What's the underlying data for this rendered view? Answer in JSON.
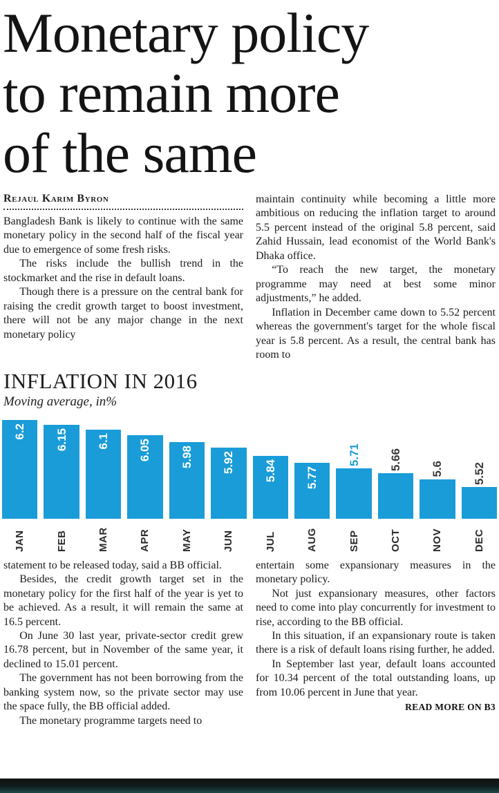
{
  "article": {
    "headline": "Monetary policy to remain more of the same",
    "headline_lines": [
      "Monetary policy",
      "to remain more",
      "of the same"
    ],
    "byline": "Rejaul Karim Byron",
    "columns_top": [
      [
        "Bangladesh Bank is likely to continue with the same monetary policy in the second half of the fiscal year due to emergence of some fresh risks.",
        "The risks include the bullish trend in the stockmarket and the rise in default loans.",
        "Though there is a pressure on the central bank for raising the credit growth target to boost investment, there will not be any major change in the next monetary policy"
      ],
      [
        "maintain continuity while becoming a little more ambitious on reducing the inflation target to around 5.5 percent instead of the original 5.8 percent, said Zahid Hussain, lead economist of the World Bank's Dhaka office.",
        "“To reach the new target, the monetary programme may need at best some minor adjustments,” he added.",
        "Inflation in December came down to 5.52 percent whereas the government's target for the whole fiscal year is 5.8 percent. As a result, the central bank has room to"
      ]
    ],
    "columns_bottom": [
      [
        "statement to be released today, said a BB official.",
        "Besides, the credit growth target set in the monetary policy for the first half of the year is yet to be achieved. As a result, it will remain the same at 16.5 percent.",
        "On June 30 last year, private-sector credit grew 16.78 percent, but in November of the same year, it declined to 15.01 percent.",
        "The government has not been borrowing from the banking system now, so the private sector may use the space fully, the BB official added.",
        "The monetary programme targets need to"
      ],
      [
        "entertain some expansionary measures in the monetary policy.",
        "Not just expansionary measures, other factors need to come into play concurrently for investment to rise, according to the BB official.",
        "In this situation, if an expansionary route is taken there is a risk of default loans rising further, he added.",
        "In September last year, default loans accounted for 10.34 percent of the total outstanding loans, up from 10.06 percent in June that year."
      ]
    ],
    "read_more": "READ MORE ON B3"
  },
  "chart_data": {
    "type": "bar",
    "title": "INFLATION IN 2016",
    "subtitle": "Moving average, in%",
    "categories": [
      "JAN",
      "FEB",
      "MAR",
      "APR",
      "MAY",
      "JUN",
      "JUL",
      "AUG",
      "SEP",
      "OCT",
      "NOV",
      "DEC"
    ],
    "values": [
      6.2,
      6.15,
      6.1,
      6.05,
      5.98,
      5.92,
      5.84,
      5.77,
      5.71,
      5.66,
      5.6,
      5.52
    ],
    "xlabel": "",
    "ylabel": "",
    "ylim": [
      5.2,
      6.25
    ],
    "grid": "off",
    "legend": "none",
    "bar_color": "#1a9cd8",
    "label_positions": [
      "inside",
      "inside",
      "inside",
      "inside",
      "inside",
      "inside",
      "inside",
      "inside",
      "above",
      "above",
      "above",
      "above"
    ],
    "label_colors": [
      "#ffffff",
      "#ffffff",
      "#ffffff",
      "#ffffff",
      "#ffffff",
      "#ffffff",
      "#ffffff",
      "#ffffff",
      "#1a9cd8",
      "#3a3a3a",
      "#3a3a3a",
      "#3a3a3a"
    ]
  }
}
